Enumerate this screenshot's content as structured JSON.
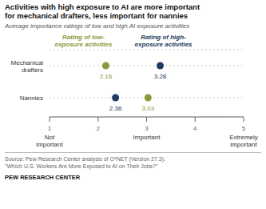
{
  "chart_data": {
    "type": "scatter",
    "orientation": "horizontal",
    "title": "Activities with high exposure to AI are more important\nfor mechanical drafters, less important for nannies",
    "subtitle": "Average importance ratings of low and high AI exposure activities",
    "categories": [
      "Mechanical\ndrafters",
      "Nannies"
    ],
    "series": [
      {
        "name": "Rating of low-\nexposure activities",
        "color": "#8a9a3a",
        "values": [
          2.16,
          3.03
        ]
      },
      {
        "name": "Rating of high-\nexposure activities",
        "color": "#1e3a5f",
        "values": [
          3.28,
          2.36
        ]
      }
    ],
    "xlim": [
      1,
      5
    ],
    "xticks": [
      1,
      2,
      3,
      4,
      5
    ],
    "annotations": [
      {
        "text": "Not\nimportant",
        "x": 1
      },
      {
        "text": "Important",
        "x": 3
      },
      {
        "text": "Extremely\nimportant",
        "x": 5
      }
    ],
    "source": "Source: Pew Research Center analysis of O*NET (Version 27.3).\n\"Which U.S. Workers Are More Exposed to AI on Their Jobs?\"",
    "footer": "PEW RESEARCH CENTER",
    "grid": true,
    "data_labels": true,
    "legend": "top",
    "marker": "circle"
  }
}
